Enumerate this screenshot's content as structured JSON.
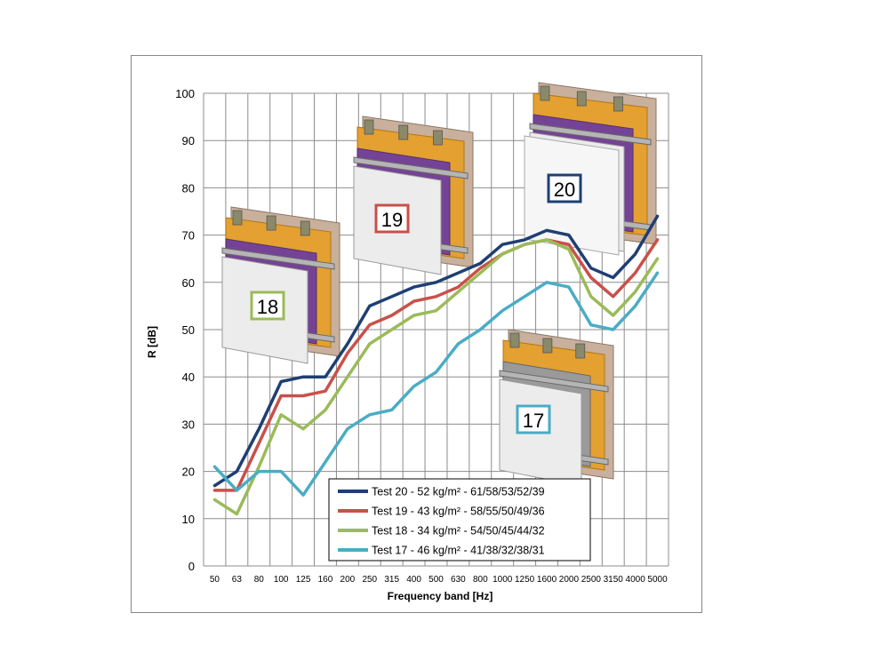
{
  "chart_data": {
    "type": "line",
    "title": "",
    "xlabel": "Frequency band [Hz]",
    "ylabel": "R [dB]",
    "ylim": [
      0,
      100
    ],
    "yticks": [
      0,
      10,
      20,
      30,
      40,
      50,
      60,
      70,
      80,
      90,
      100
    ],
    "grid": true,
    "legend_position": "bottom-right",
    "categories": [
      "50",
      "63",
      "80",
      "100",
      "125",
      "160",
      "200",
      "250",
      "315",
      "400",
      "500",
      "630",
      "800",
      "1000",
      "1250",
      "1600",
      "2000",
      "2500",
      "3150",
      "4000",
      "5000"
    ],
    "series": [
      {
        "name": "Test 20 - 52 kg/m² - 61/58/53/52/39",
        "color": "#1f3f73",
        "values": [
          17,
          20,
          29,
          39,
          40,
          40,
          47,
          55,
          57,
          59,
          60,
          62,
          64,
          68,
          69,
          71,
          70,
          63,
          61,
          66,
          74
        ]
      },
      {
        "name": "Test 19 - 43 kg/m² - 58/55/50/49/36",
        "color": "#c9504a",
        "values": [
          16,
          16,
          26,
          36,
          36,
          37,
          45,
          51,
          53,
          56,
          57,
          59,
          63,
          66,
          68,
          69,
          68,
          61,
          57,
          62,
          69
        ]
      },
      {
        "name": "Test 18 - 34 kg/m² - 54/50/45/44/32",
        "color": "#9bbb59",
        "values": [
          14,
          11,
          21,
          32,
          29,
          33,
          40,
          47,
          50,
          53,
          54,
          58,
          62,
          66,
          68,
          69,
          67,
          57,
          53,
          58,
          65
        ]
      },
      {
        "name": "Test 17 - 46 kg/m² - 41/38/32/38/31",
        "color": "#4aacc6",
        "values": [
          21,
          16,
          20,
          20,
          15,
          22,
          29,
          32,
          33,
          38,
          41,
          47,
          50,
          54,
          57,
          60,
          59,
          51,
          50,
          55,
          62
        ]
      }
    ],
    "annotations": [
      {
        "label": "18",
        "color": "#9bbb59"
      },
      {
        "label": "19",
        "color": "#c9504a"
      },
      {
        "label": "20",
        "color": "#1f3f73"
      },
      {
        "label": "17",
        "color": "#4aacc6"
      }
    ]
  }
}
